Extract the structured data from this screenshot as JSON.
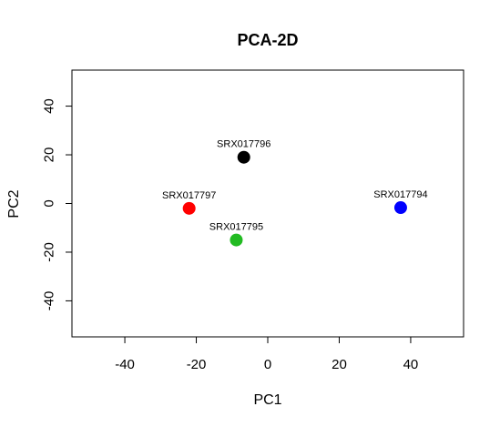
{
  "chart_data": {
    "type": "scatter",
    "title": "PCA-2D",
    "xlabel": "PC1",
    "ylabel": "PC2",
    "xlim": [
      -54.8,
      54.8
    ],
    "ylim": [
      -54.8,
      54.8
    ],
    "xticks": [
      -40,
      -20,
      0,
      20,
      40
    ],
    "yticks": [
      -40,
      -20,
      0,
      20,
      40
    ],
    "grid": false,
    "legend": "none",
    "points": [
      {
        "label": "SRX017796",
        "x": -6.7,
        "y": 19,
        "color": "#000000"
      },
      {
        "label": "SRX017797",
        "x": -22,
        "y": -2,
        "color": "#ff0000"
      },
      {
        "label": "SRX017795",
        "x": -8.8,
        "y": -15,
        "color": "#22bb22"
      },
      {
        "label": "SRX017794",
        "x": 37.2,
        "y": -1.7,
        "color": "#0000ff"
      }
    ]
  }
}
